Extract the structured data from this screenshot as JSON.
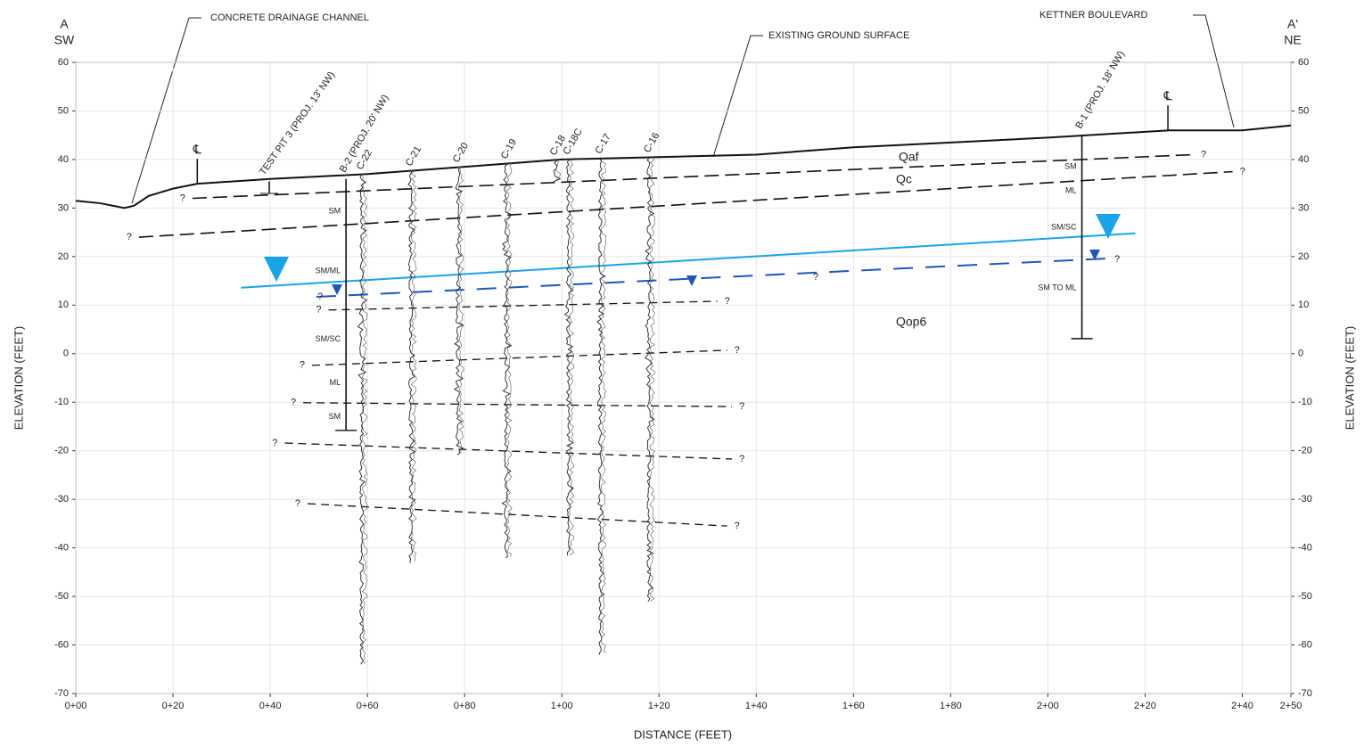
{
  "header": {
    "left_mark": "A",
    "left_dir": "SW",
    "right_mark": "A'",
    "right_dir": "NE"
  },
  "axes": {
    "x_label": "DISTANCE (FEET)",
    "y_label": "ELEVATION (FEET)",
    "y2_label": "ELEVATION (FEET)",
    "xlim": [
      0,
      250
    ],
    "ylim": [
      -70,
      60
    ],
    "xticks": [
      {
        "value": 0,
        "label": "0+00"
      },
      {
        "value": 20,
        "label": "0+20"
      },
      {
        "value": 40,
        "label": "0+40"
      },
      {
        "value": 60,
        "label": "0+60"
      },
      {
        "value": 80,
        "label": "0+80"
      },
      {
        "value": 100,
        "label": "1+00"
      },
      {
        "value": 120,
        "label": "1+20"
      },
      {
        "value": 140,
        "label": "1+40"
      },
      {
        "value": 160,
        "label": "1+60"
      },
      {
        "value": 180,
        "label": "1+80"
      },
      {
        "value": 200,
        "label": "2+00"
      },
      {
        "value": 220,
        "label": "2+20"
      },
      {
        "value": 240,
        "label": "2+40"
      },
      {
        "value": 250,
        "label": "2+50"
      }
    ],
    "yticks": [
      60,
      50,
      40,
      30,
      20,
      10,
      0,
      -10,
      -20,
      -30,
      -40,
      -50,
      -60,
      -70
    ]
  },
  "annotations": [
    "CONCRETE DRAINAGE CHANNEL",
    "EXISTING GROUND SURFACE",
    "KETTNER BOULEVARD"
  ],
  "ground_surface": {
    "x": [
      0,
      5,
      10,
      12,
      15,
      20,
      25,
      40,
      60,
      80,
      100,
      120,
      140,
      160,
      180,
      200,
      225,
      240,
      250
    ],
    "y": [
      31.5,
      31,
      30,
      30.5,
      32.5,
      34,
      35,
      36,
      37,
      38.5,
      40,
      40.5,
      41,
      42.5,
      43.5,
      44.5,
      46,
      46,
      47
    ]
  },
  "contacts": [
    {
      "x": [
        24,
        230
      ],
      "y": [
        32,
        41
      ],
      "start_label": "?",
      "end_label": "?"
    },
    {
      "x": [
        13,
        238
      ],
      "y": [
        24,
        37.5
      ],
      "start_label": "?",
      "end_label": "?"
    },
    {
      "x": [
        52,
        132
      ],
      "y": [
        9,
        10.8
      ],
      "start_label": "?",
      "end_label": "?"
    },
    {
      "x": [
        48.6,
        134
      ],
      "y": [
        -2.4,
        0.7
      ],
      "start_label": "?",
      "end_label": "?"
    },
    {
      "x": [
        46.8,
        135
      ],
      "y": [
        -10.1,
        -10.9
      ],
      "start_label": "?",
      "end_label": "?"
    },
    {
      "x": [
        43,
        135
      ],
      "y": [
        -18.4,
        -21.7
      ],
      "start_label": "?",
      "end_label": "?"
    },
    {
      "x": [
        47.7,
        134
      ],
      "y": [
        -30.9,
        -35.5
      ],
      "start_label": "?",
      "end_label": "?"
    }
  ],
  "water": {
    "design": {
      "x": [
        34,
        218
      ],
      "y": [
        13.6,
        24.8
      ]
    },
    "measured": {
      "x": [
        49.5,
        212
      ],
      "y": [
        11.7,
        19.6
      ],
      "labels": [
        "?",
        "?",
        "?"
      ]
    }
  },
  "units": [
    "Qaf",
    "Qc",
    "Qop6"
  ],
  "centerlines": [
    {
      "symbol": "℄",
      "x": 25
    },
    {
      "symbol": "℄",
      "x": 224.7
    }
  ],
  "test_pit": {
    "label": "TEST PIT 3 (PROJ. 13' NW)",
    "x": 39.8,
    "top": 35.5,
    "bottom": 33
  },
  "borings": [
    {
      "label": "B-2 (PROJ. 20' NW)",
      "x": 55.6,
      "top": 36,
      "bottom": -15.8,
      "soils": [
        "SM",
        "SM/ML",
        "SM/SC",
        "ML",
        "SM"
      ]
    },
    {
      "label": "B-1 (PROJ. 18' NW)",
      "x": 207,
      "top": 45,
      "bottom": 3.1,
      "soils": [
        "SM",
        "ML",
        "SM/SC",
        "SM TO ML"
      ]
    }
  ],
  "cpts": [
    {
      "label": "C-22",
      "x": 58.7,
      "bottom": -64
    },
    {
      "label": "C-21",
      "x": 68.8,
      "bottom": -43.2
    },
    {
      "label": "C-20",
      "x": 78.5,
      "bottom": -20.8
    },
    {
      "label": "C-19",
      "x": 88.4,
      "bottom": -42
    },
    {
      "label": "C-18",
      "x": 98.5,
      "bottom": 35.2
    },
    {
      "label": "C-18C",
      "x": 101.2,
      "bottom": -41.5
    },
    {
      "label": "C-17",
      "x": 107.8,
      "bottom": -62
    },
    {
      "label": "C-16",
      "x": 117.8,
      "bottom": -51
    }
  ]
}
